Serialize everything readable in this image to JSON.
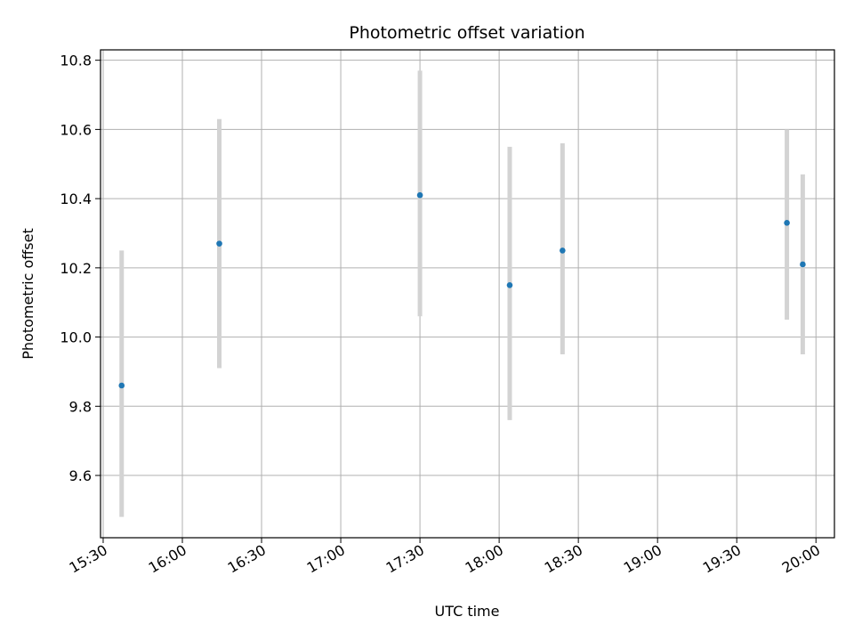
{
  "chart_data": {
    "type": "scatter",
    "title": "Photometric offset variation",
    "xlabel": "UTC time",
    "ylabel": "Photometric offset",
    "grid": true,
    "x_unit": "HH:MM (UTC)",
    "xlim": [
      "15:29",
      "20:07"
    ],
    "ylim": [
      9.42,
      10.83
    ],
    "x_ticks": [
      "15:30",
      "16:00",
      "16:30",
      "17:00",
      "17:30",
      "18:00",
      "18:30",
      "19:00",
      "19:30",
      "20:00"
    ],
    "y_ticks": [
      "9.6",
      "9.8",
      "10.0",
      "10.2",
      "10.4",
      "10.6",
      "10.8"
    ],
    "points": [
      {
        "time": "15:37",
        "y": 9.86,
        "err_low": 9.48,
        "err_high": 10.25
      },
      {
        "time": "16:14",
        "y": 10.27,
        "err_low": 9.91,
        "err_high": 10.63
      },
      {
        "time": "17:30",
        "y": 10.41,
        "err_low": 10.06,
        "err_high": 10.77
      },
      {
        "time": "18:04",
        "y": 10.15,
        "err_low": 9.76,
        "err_high": 10.55
      },
      {
        "time": "18:24",
        "y": 10.25,
        "err_low": 9.95,
        "err_high": 10.56
      },
      {
        "time": "19:49",
        "y": 10.33,
        "err_low": 10.05,
        "err_high": 10.6
      },
      {
        "time": "19:55",
        "y": 10.21,
        "err_low": 9.95,
        "err_high": 10.47
      }
    ],
    "colors": {
      "point": "#1f77b4",
      "errorbar": "#d3d3d3",
      "grid": "#b0b0b0",
      "axes": "#000000"
    }
  }
}
